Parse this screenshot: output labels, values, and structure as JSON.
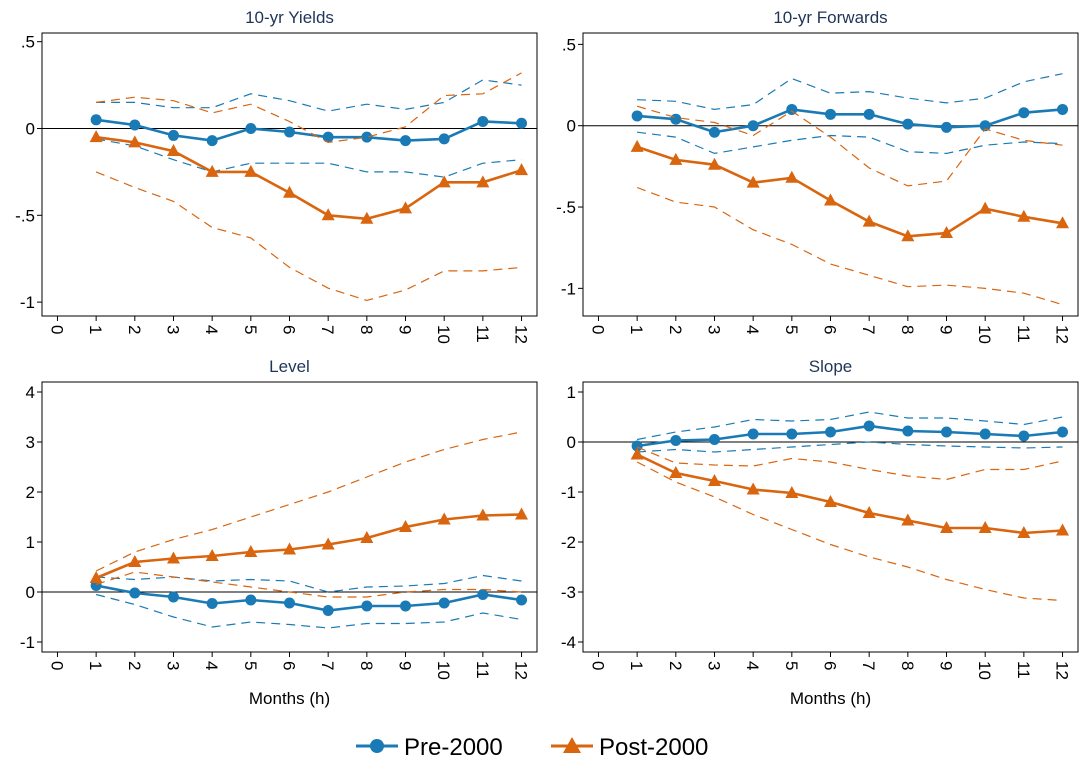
{
  "colors": {
    "pre": "#1a7ab5",
    "post": "#d9650f"
  },
  "legend": {
    "pre_label": "Pre-2000",
    "post_label": "Post-2000"
  },
  "chart_data": [
    {
      "type": "line",
      "title": "10-yr Yields",
      "xlabel": "",
      "ylabel": "",
      "xlim": [
        -0.4,
        12.4
      ],
      "ylim": [
        -1.08,
        0.55
      ],
      "yticks": [
        -1,
        -0.5,
        0,
        0.5
      ],
      "ytick_labels": [
        "-1",
        "-.5",
        "0",
        ".5"
      ],
      "xticks": [
        0,
        1,
        2,
        3,
        4,
        5,
        6,
        7,
        8,
        9,
        10,
        11,
        12
      ],
      "xtick_labels": [
        "0",
        "1",
        "2",
        "3",
        "4",
        "5",
        "6",
        "7",
        "8",
        "9",
        "10",
        "11",
        "12"
      ],
      "zero_line": true,
      "grid": false,
      "x": [
        1,
        2,
        3,
        4,
        5,
        6,
        7,
        8,
        9,
        10,
        11,
        12
      ],
      "series": [
        {
          "name": "Pre-2000",
          "marker": "circle",
          "values": [
            0.05,
            0.02,
            -0.04,
            -0.07,
            0.0,
            -0.02,
            -0.05,
            -0.05,
            -0.07,
            -0.06,
            0.04,
            0.03
          ],
          "lower": [
            -0.06,
            -0.1,
            -0.18,
            -0.25,
            -0.2,
            -0.2,
            -0.2,
            -0.25,
            -0.25,
            -0.28,
            -0.2,
            -0.18
          ],
          "upper": [
            0.15,
            0.15,
            0.12,
            0.12,
            0.2,
            0.16,
            0.1,
            0.14,
            0.11,
            0.15,
            0.28,
            0.25
          ]
        },
        {
          "name": "Post-2000",
          "marker": "triangle",
          "values": [
            -0.05,
            -0.08,
            -0.13,
            -0.25,
            -0.25,
            -0.37,
            -0.5,
            -0.52,
            -0.46,
            -0.31,
            -0.31,
            -0.24
          ],
          "lower": [
            -0.25,
            -0.34,
            -0.42,
            -0.57,
            -0.63,
            -0.8,
            -0.92,
            -0.99,
            -0.93,
            -0.82,
            -0.82,
            -0.8
          ],
          "upper": [
            0.15,
            0.18,
            0.16,
            0.09,
            0.14,
            0.04,
            -0.08,
            -0.05,
            0.01,
            0.19,
            0.2,
            0.32
          ]
        }
      ]
    },
    {
      "type": "line",
      "title": "10-yr Forwards",
      "xlabel": "",
      "ylabel": "",
      "xlim": [
        -0.4,
        12.4
      ],
      "ylim": [
        -1.17,
        0.57
      ],
      "yticks": [
        -1,
        -0.5,
        0,
        0.5
      ],
      "ytick_labels": [
        "-1",
        "-.5",
        "0",
        ".5"
      ],
      "xticks": [
        0,
        1,
        2,
        3,
        4,
        5,
        6,
        7,
        8,
        9,
        10,
        11,
        12
      ],
      "xtick_labels": [
        "0",
        "1",
        "2",
        "3",
        "4",
        "5",
        "6",
        "7",
        "8",
        "9",
        "10",
        "11",
        "12"
      ],
      "zero_line": true,
      "grid": false,
      "x": [
        1,
        2,
        3,
        4,
        5,
        6,
        7,
        8,
        9,
        10,
        11,
        12
      ],
      "series": [
        {
          "name": "Pre-2000",
          "marker": "circle",
          "values": [
            0.06,
            0.04,
            -0.04,
            0.0,
            0.1,
            0.07,
            0.07,
            0.01,
            -0.01,
            0.0,
            0.08,
            0.1
          ],
          "lower": [
            -0.04,
            -0.07,
            -0.17,
            -0.13,
            -0.09,
            -0.06,
            -0.07,
            -0.16,
            -0.17,
            -0.12,
            -0.1,
            -0.11
          ],
          "upper": [
            0.16,
            0.15,
            0.1,
            0.13,
            0.29,
            0.2,
            0.21,
            0.17,
            0.14,
            0.17,
            0.27,
            0.32
          ]
        },
        {
          "name": "Post-2000",
          "marker": "triangle",
          "values": [
            -0.13,
            -0.21,
            -0.24,
            -0.35,
            -0.32,
            -0.46,
            -0.59,
            -0.68,
            -0.66,
            -0.51,
            -0.56,
            -0.6
          ],
          "lower": [
            -0.38,
            -0.47,
            -0.5,
            -0.64,
            -0.73,
            -0.85,
            -0.92,
            -0.99,
            -0.98,
            -1.0,
            -1.03,
            -1.1
          ],
          "upper": [
            0.12,
            0.05,
            0.02,
            -0.06,
            0.09,
            -0.07,
            -0.26,
            -0.37,
            -0.34,
            -0.02,
            -0.09,
            -0.12
          ]
        }
      ]
    },
    {
      "type": "line",
      "title": "Level",
      "xlabel": "Months (h)",
      "ylabel": "",
      "xlim": [
        -0.4,
        12.4
      ],
      "ylim": [
        -1.2,
        4.2
      ],
      "yticks": [
        -1,
        0,
        1,
        2,
        3,
        4
      ],
      "ytick_labels": [
        "-1",
        "0",
        "1",
        "2",
        "3",
        "4"
      ],
      "xticks": [
        0,
        1,
        2,
        3,
        4,
        5,
        6,
        7,
        8,
        9,
        10,
        11,
        12
      ],
      "xtick_labels": [
        "0",
        "1",
        "2",
        "3",
        "4",
        "5",
        "6",
        "7",
        "8",
        "9",
        "10",
        "11",
        "12"
      ],
      "zero_line": true,
      "grid": false,
      "x": [
        1,
        2,
        3,
        4,
        5,
        6,
        7,
        8,
        9,
        10,
        11,
        12
      ],
      "series": [
        {
          "name": "Pre-2000",
          "marker": "circle",
          "values": [
            0.13,
            -0.02,
            -0.1,
            -0.23,
            -0.16,
            -0.22,
            -0.37,
            -0.28,
            -0.28,
            -0.22,
            -0.05,
            -0.16
          ],
          "lower": [
            -0.05,
            -0.25,
            -0.5,
            -0.7,
            -0.6,
            -0.65,
            -0.72,
            -0.63,
            -0.63,
            -0.6,
            -0.42,
            -0.55
          ],
          "upper": [
            0.3,
            0.25,
            0.3,
            0.22,
            0.25,
            0.22,
            0.0,
            0.1,
            0.12,
            0.17,
            0.33,
            0.22
          ]
        },
        {
          "name": "Post-2000",
          "marker": "triangle",
          "values": [
            0.28,
            0.6,
            0.67,
            0.72,
            0.8,
            0.85,
            0.95,
            1.08,
            1.3,
            1.45,
            1.53,
            1.55
          ],
          "lower": [
            0.15,
            0.4,
            0.3,
            0.2,
            0.1,
            0.0,
            -0.1,
            -0.1,
            0.0,
            0.05,
            0.05,
            0.0
          ],
          "upper": [
            0.42,
            0.8,
            1.05,
            1.25,
            1.5,
            1.75,
            2.0,
            2.3,
            2.6,
            2.85,
            3.05,
            3.2
          ]
        }
      ]
    },
    {
      "type": "line",
      "title": "Slope",
      "xlabel": "Months (h)",
      "ylabel": "",
      "xlim": [
        -0.4,
        12.4
      ],
      "ylim": [
        -4.2,
        1.2
      ],
      "yticks": [
        -4,
        -3,
        -2,
        -1,
        0,
        1
      ],
      "ytick_labels": [
        "-4",
        "-3",
        "-2",
        "-1",
        "0",
        "1"
      ],
      "xticks": [
        0,
        1,
        2,
        3,
        4,
        5,
        6,
        7,
        8,
        9,
        10,
        11,
        12
      ],
      "xtick_labels": [
        "0",
        "1",
        "2",
        "3",
        "4",
        "5",
        "6",
        "7",
        "8",
        "9",
        "10",
        "11",
        "12"
      ],
      "zero_line": true,
      "grid": false,
      "x": [
        1,
        2,
        3,
        4,
        5,
        6,
        7,
        8,
        9,
        10,
        11,
        12
      ],
      "series": [
        {
          "name": "Pre-2000",
          "marker": "circle",
          "values": [
            -0.08,
            0.03,
            0.05,
            0.16,
            0.16,
            0.2,
            0.32,
            0.22,
            0.2,
            0.16,
            0.12,
            0.2
          ],
          "lower": [
            -0.2,
            -0.15,
            -0.2,
            -0.15,
            -0.1,
            -0.05,
            0.0,
            -0.05,
            -0.08,
            -0.1,
            -0.12,
            -0.1
          ],
          "upper": [
            0.05,
            0.2,
            0.3,
            0.45,
            0.42,
            0.45,
            0.6,
            0.48,
            0.48,
            0.42,
            0.35,
            0.5
          ]
        },
        {
          "name": "Post-2000",
          "marker": "triangle",
          "values": [
            -0.25,
            -0.62,
            -0.78,
            -0.95,
            -1.02,
            -1.2,
            -1.42,
            -1.57,
            -1.72,
            -1.72,
            -1.82,
            -1.77
          ],
          "lower": [
            -0.4,
            -0.8,
            -1.1,
            -1.45,
            -1.75,
            -2.05,
            -2.3,
            -2.5,
            -2.75,
            -2.95,
            -3.12,
            -3.17
          ],
          "upper": [
            -0.1,
            -0.42,
            -0.46,
            -0.48,
            -0.33,
            -0.4,
            -0.55,
            -0.68,
            -0.75,
            -0.55,
            -0.55,
            -0.38
          ]
        }
      ]
    }
  ]
}
